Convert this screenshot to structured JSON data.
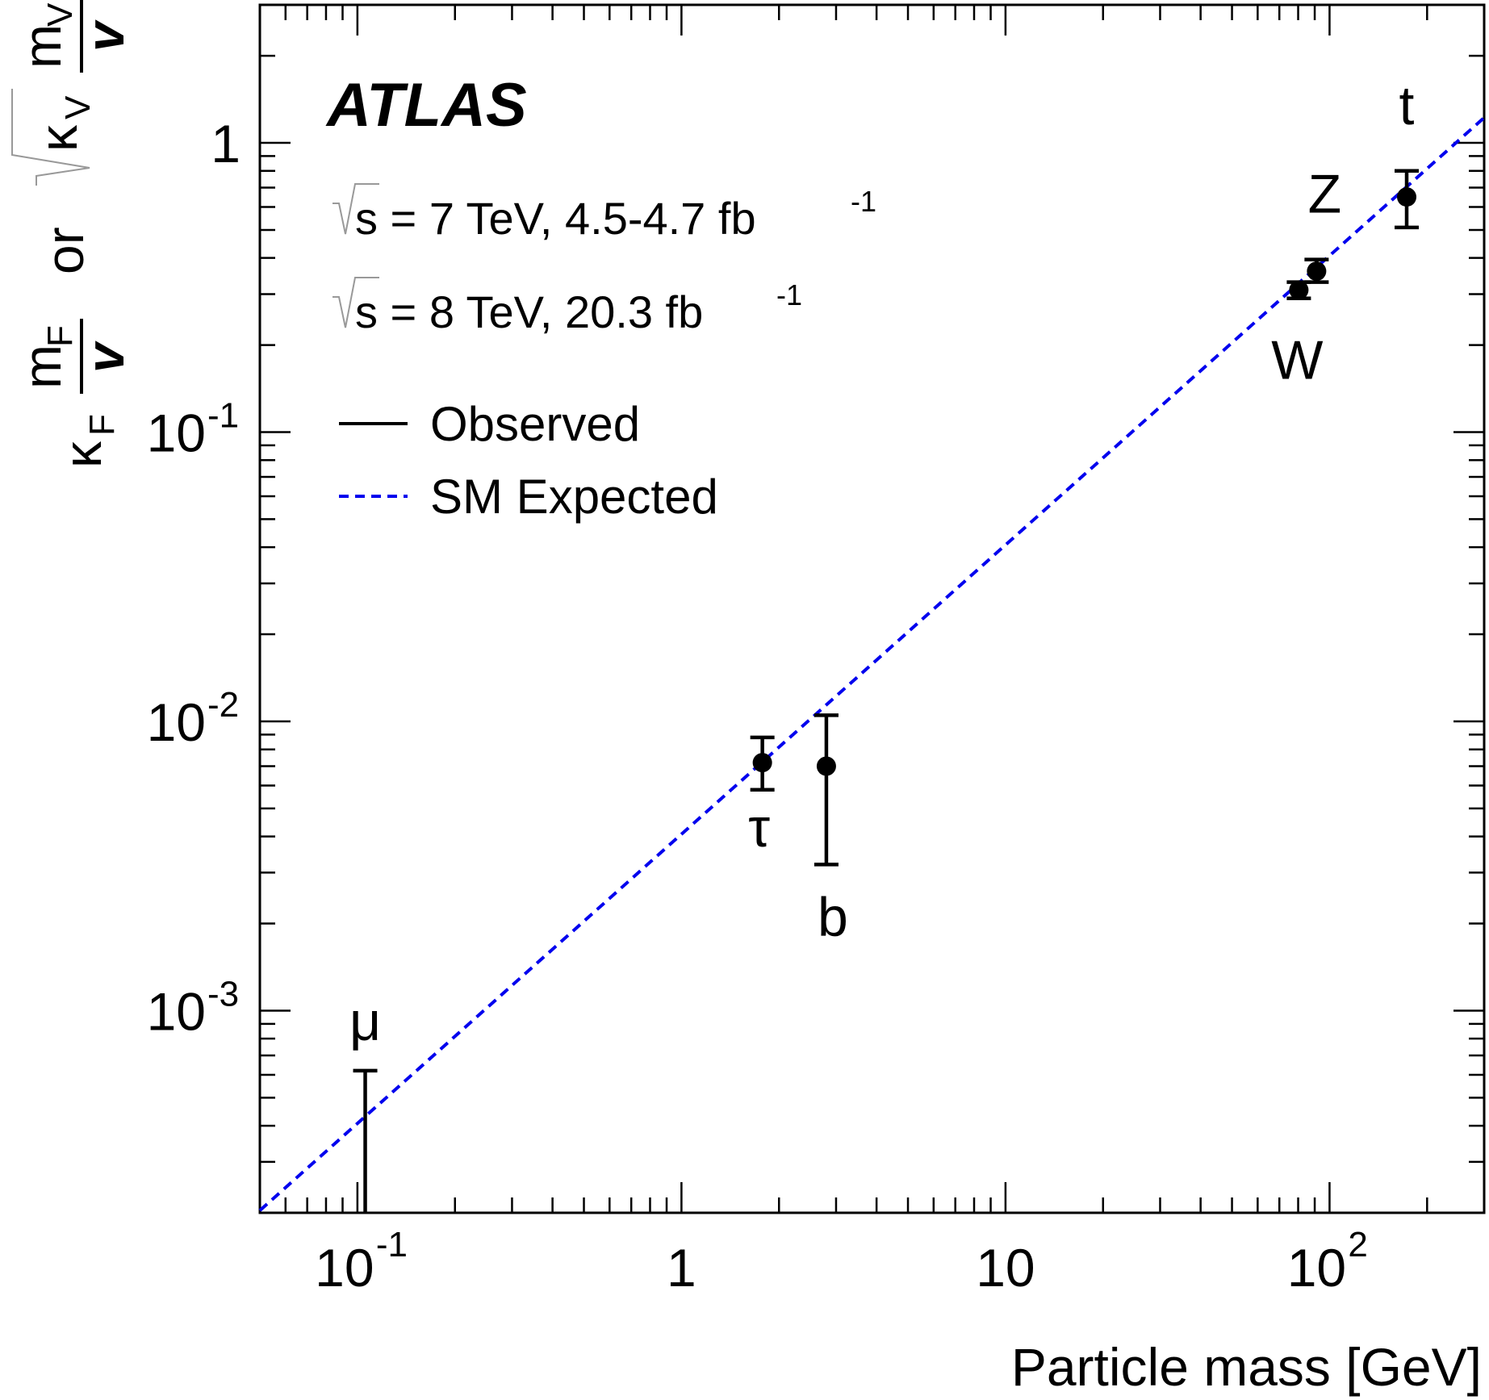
{
  "chart_data": {
    "type": "scatter",
    "xscale": "log",
    "yscale": "log",
    "xlim": [
      0.05,
      300
    ],
    "ylim": [
      0.0002,
      3
    ],
    "xlabel": "Particle mass [GeV]",
    "ylabel_parts": {
      "kappa_f": "κ",
      "f_sub": "F",
      "m_f": "m",
      "f_sub2": "F",
      "v": "v",
      "or": "or",
      "kappa_v": "κ",
      "v_sub": "V",
      "m_v": "m",
      "v_sub2": "V",
      "v2": "v"
    },
    "x_ticks": [
      {
        "value": 0.1,
        "base": "10",
        "exp": "-1"
      },
      {
        "value": 1,
        "base": "1",
        "exp": ""
      },
      {
        "value": 10,
        "base": "10",
        "exp": ""
      },
      {
        "value": 100,
        "base": "10",
        "exp": "2"
      }
    ],
    "y_ticks": [
      {
        "value": 0.001,
        "base": "10",
        "exp": "-3"
      },
      {
        "value": 0.01,
        "base": "10",
        "exp": "-2"
      },
      {
        "value": 0.1,
        "base": "10",
        "exp": "-1"
      },
      {
        "value": 1,
        "base": "1",
        "exp": ""
      }
    ],
    "experiment": "ATLAS",
    "energy_lines": [
      {
        "sqrt": "√",
        "text": "s = 7 TeV, 4.5-4.7 fb",
        "sup": "-1"
      },
      {
        "sqrt": "√",
        "text": "s = 8 TeV, 20.3 fb",
        "sup": "-1"
      }
    ],
    "legend": [
      {
        "label": "Observed",
        "style": "solid",
        "color": "#000000"
      },
      {
        "label": "SM Expected",
        "style": "dashed",
        "color": "#0000ee"
      }
    ],
    "expected_line": {
      "x": [
        0.05,
        300
      ],
      "slope_coeff": 0.004074
    },
    "points": [
      {
        "label": "μ",
        "x": 0.1057,
        "y": null,
        "y_upper": 0.00062,
        "y_lower": 0.0002,
        "label_pos": "above"
      },
      {
        "label": "τ",
        "x": 1.777,
        "y": 0.0072,
        "y_upper": 0.0088,
        "y_lower": 0.0058,
        "label_pos": "below"
      },
      {
        "label": "b",
        "x": 2.8,
        "y": 0.007,
        "y_upper": 0.0105,
        "y_lower": 0.0032,
        "label_pos": "below"
      },
      {
        "label": "W",
        "x": 80.4,
        "y": 0.31,
        "y_upper": 0.33,
        "y_lower": 0.29,
        "label_pos": "below"
      },
      {
        "label": "Z",
        "x": 91.2,
        "y": 0.36,
        "y_upper": 0.395,
        "y_lower": 0.33,
        "label_pos": "above"
      },
      {
        "label": "t",
        "x": 173,
        "y": 0.65,
        "y_upper": 0.8,
        "y_lower": 0.51,
        "label_pos": "above"
      }
    ],
    "colors": {
      "axis": "#000000",
      "expected": "#0000ee",
      "marker": "#000000"
    }
  }
}
